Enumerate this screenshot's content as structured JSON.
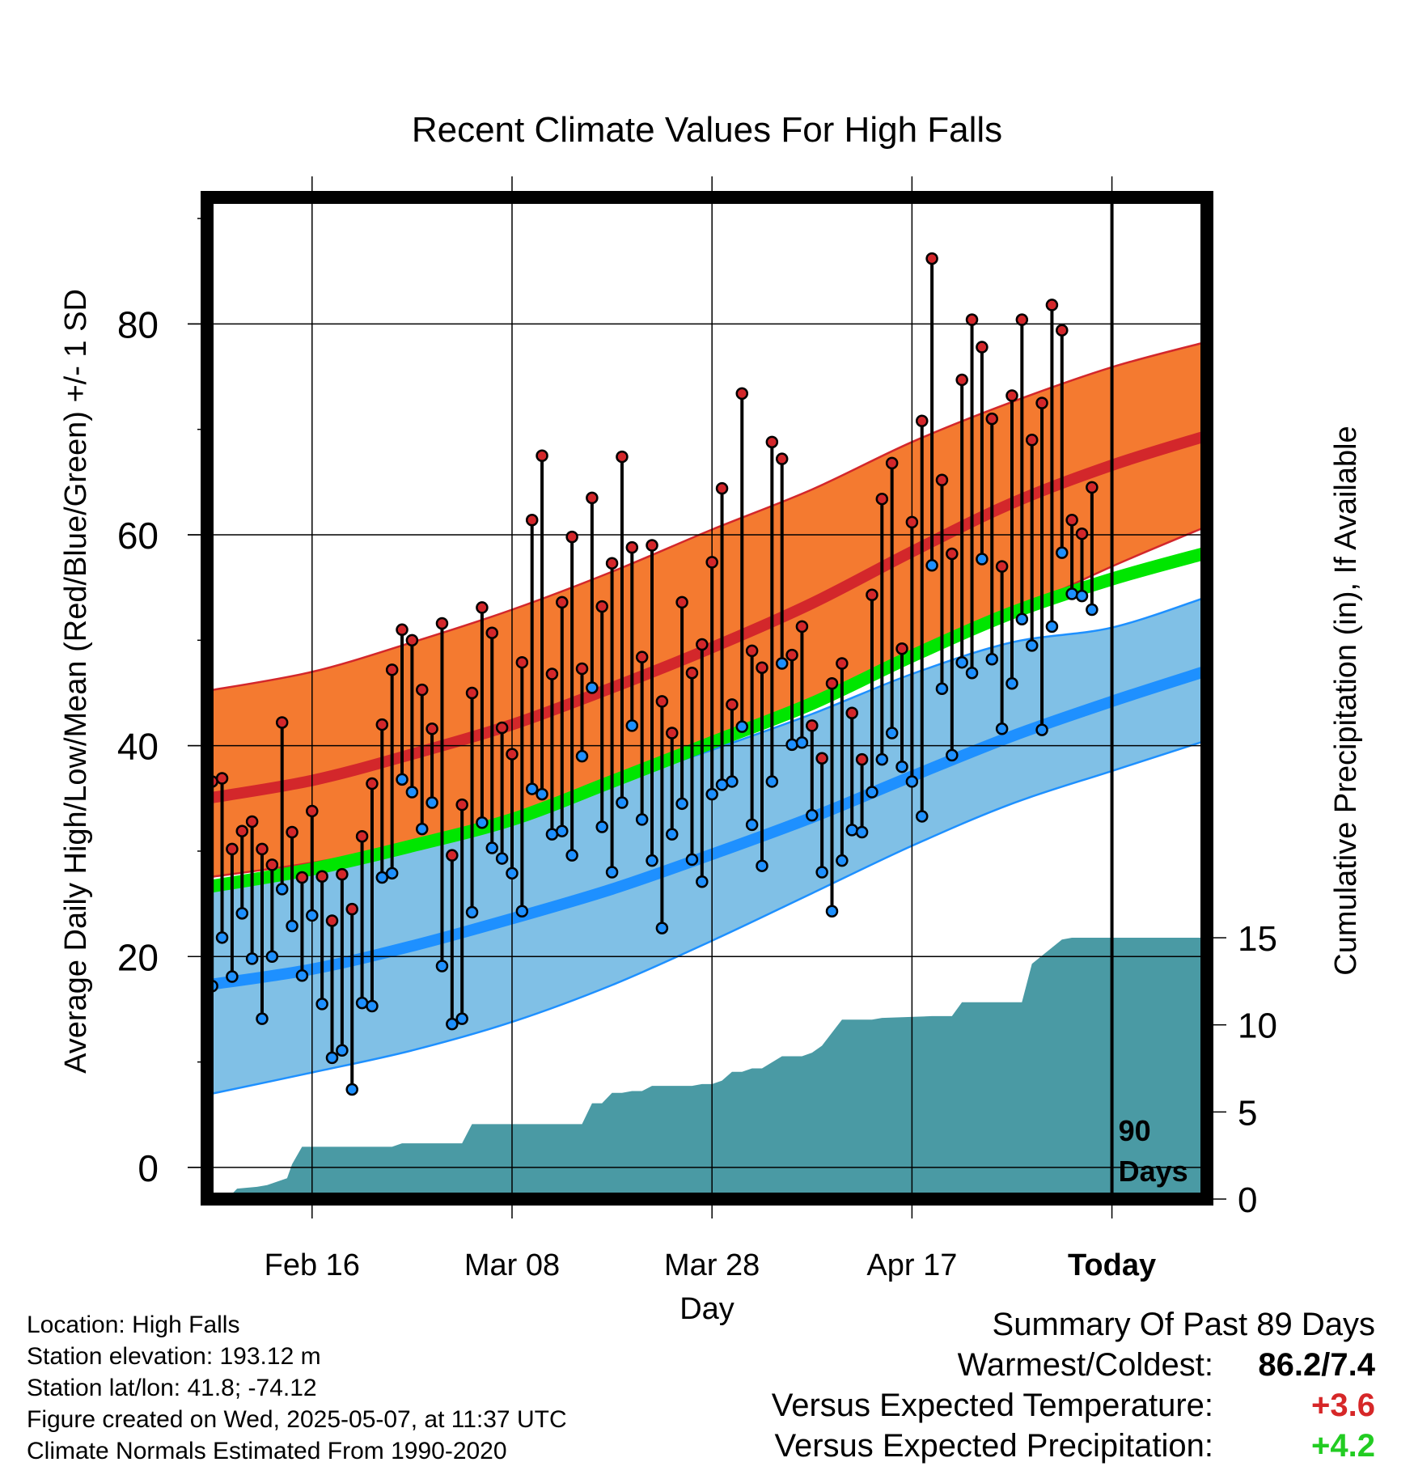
{
  "chart_data": {
    "type": "line",
    "title": "Recent Climate Values For High Falls",
    "xlabel": "Day",
    "ylabel": "Average Daily High/Low/Mean (Red/Blue/Green) +/- 1 SD",
    "y2label": "Cumulative Precipitation (in), If Available",
    "xlim": [
      -10.5,
      89.5
    ],
    "ylim": [
      -3,
      92
    ],
    "y2lim": [
      0,
      57.5
    ],
    "x_ticks": [
      {
        "x": 0,
        "label": "Feb 16"
      },
      {
        "x": 20,
        "label": "Mar 08"
      },
      {
        "x": 40,
        "label": "Mar 28"
      },
      {
        "x": 60,
        "label": "Apr 17"
      },
      {
        "x": 80,
        "label": "Today"
      }
    ],
    "y_ticks": [
      0,
      20,
      40,
      60,
      80
    ],
    "y2_ticks": [
      0,
      5,
      10,
      15
    ],
    "today_marker": {
      "x": 80,
      "label_line1": "90",
      "label_line2": "Days"
    },
    "grid": true,
    "series": [
      {
        "name": "Normal High",
        "x": [
          -10.5,
          0,
          10,
          20,
          30,
          40,
          50,
          60,
          70,
          80,
          89.5
        ],
        "values": [
          35.0,
          36.7,
          39.2,
          42.0,
          45.5,
          49.3,
          53.5,
          58.4,
          63.0,
          66.6,
          69.4
        ]
      },
      {
        "name": "Normal High +1 SD",
        "x": [
          -10.5,
          0,
          10,
          20,
          30,
          40,
          50,
          60,
          70,
          80,
          89.5
        ],
        "values": [
          45.2,
          47.0,
          49.8,
          52.9,
          56.5,
          60.5,
          64.3,
          68.8,
          72.6,
          75.9,
          78.3
        ]
      },
      {
        "name": "Normal High -1 SD",
        "x": [
          -10.5,
          0,
          10,
          20,
          30,
          40,
          50,
          60,
          70,
          80,
          89.5
        ],
        "values": [
          27.5,
          28.9,
          30.7,
          33.3,
          36.4,
          39.9,
          43.6,
          48.4,
          52.6,
          57.0,
          60.8
        ]
      },
      {
        "name": "Normal Mean",
        "x": [
          -10.5,
          0,
          10,
          20,
          30,
          40,
          50,
          60,
          70,
          80,
          89.5
        ],
        "values": [
          26.6,
          28.3,
          30.5,
          33.0,
          36.6,
          40.3,
          44.0,
          48.5,
          52.6,
          55.8,
          58.3
        ]
      },
      {
        "name": "Normal Low",
        "x": [
          -10.5,
          0,
          10,
          20,
          30,
          40,
          50,
          60,
          70,
          80,
          89.5
        ],
        "values": [
          17.3,
          18.8,
          21.0,
          23.6,
          26.4,
          29.7,
          33.2,
          37.1,
          40.9,
          44.2,
          47.1
        ]
      },
      {
        "name": "Normal Low +1 SD",
        "x": [
          -10.5,
          0,
          10,
          20,
          30,
          40,
          50,
          60,
          70,
          80,
          89.5
        ],
        "values": [
          26.6,
          28.3,
          30.5,
          32.9,
          36.4,
          39.6,
          43.0,
          46.8,
          49.8,
          51.2,
          54.1
        ]
      },
      {
        "name": "Normal Low -1 SD",
        "x": [
          -10.5,
          0,
          10,
          20,
          30,
          40,
          50,
          60,
          70,
          80,
          89.5
        ],
        "values": [
          6.9,
          9.0,
          11.1,
          13.8,
          17.3,
          21.5,
          26.0,
          30.5,
          34.5,
          37.6,
          40.5
        ]
      },
      {
        "name": "Daily High",
        "x": [
          -10,
          -9,
          -8,
          -7,
          -6,
          -5,
          -4,
          -3,
          -2,
          -1,
          0,
          1,
          2,
          3,
          4,
          5,
          6,
          7,
          8,
          9,
          10,
          11,
          12,
          13,
          14,
          15,
          16,
          17,
          18,
          19,
          20,
          21,
          22,
          23,
          24,
          25,
          26,
          27,
          28,
          29,
          30,
          31,
          32,
          33,
          34,
          35,
          36,
          37,
          38,
          39,
          40,
          41,
          42,
          43,
          44,
          45,
          46,
          47,
          48,
          49,
          50,
          51,
          52,
          53,
          54,
          55,
          56,
          57,
          58,
          59,
          60,
          61,
          62,
          63,
          64,
          65,
          66,
          67,
          68,
          69,
          70,
          71,
          72,
          73,
          74,
          75,
          76,
          77,
          78
        ],
        "values": [
          36.6,
          36.9,
          30.2,
          31.9,
          32.8,
          30.2,
          28.7,
          42.2,
          31.8,
          27.5,
          33.8,
          27.6,
          23.4,
          27.8,
          24.5,
          31.4,
          36.4,
          42.0,
          47.2,
          51.0,
          50.0,
          45.3,
          41.6,
          51.6,
          29.6,
          34.4,
          45.0,
          53.1,
          50.7,
          41.7,
          39.2,
          47.9,
          61.4,
          67.5,
          46.8,
          53.6,
          59.8,
          47.3,
          63.5,
          53.2,
          57.3,
          67.4,
          58.8,
          48.4,
          59.0,
          44.2,
          41.2,
          53.6,
          46.9,
          49.6,
          57.4,
          64.4,
          43.9,
          73.4,
          49.0,
          47.4,
          68.8,
          67.2,
          48.6,
          51.3,
          41.9,
          38.8,
          45.9,
          47.8,
          43.1,
          38.7,
          54.3,
          63.4,
          66.8,
          49.2,
          61.2,
          70.8,
          86.2,
          65.2,
          58.2,
          74.7,
          80.4,
          77.8,
          71.0,
          57.0,
          73.2,
          80.4,
          69.0,
          72.5,
          81.8,
          79.4,
          61.4,
          60.1,
          64.5
        ]
      },
      {
        "name": "Daily Low",
        "x": [
          -10,
          -9,
          -8,
          -7,
          -6,
          -5,
          -4,
          -3,
          -2,
          -1,
          0,
          1,
          2,
          3,
          4,
          5,
          6,
          7,
          8,
          9,
          10,
          11,
          12,
          13,
          14,
          15,
          16,
          17,
          18,
          19,
          20,
          21,
          22,
          23,
          24,
          25,
          26,
          27,
          28,
          29,
          30,
          31,
          32,
          33,
          34,
          35,
          36,
          37,
          38,
          39,
          40,
          41,
          42,
          43,
          44,
          45,
          46,
          47,
          48,
          49,
          50,
          51,
          52,
          53,
          54,
          55,
          56,
          57,
          58,
          59,
          60,
          61,
          62,
          63,
          64,
          65,
          66,
          67,
          68,
          69,
          70,
          71,
          72,
          73,
          74,
          75,
          76,
          77,
          78
        ],
        "values": [
          17.2,
          21.8,
          18.1,
          24.1,
          19.8,
          14.1,
          20.0,
          26.4,
          22.9,
          18.2,
          23.9,
          15.5,
          10.4,
          11.1,
          7.4,
          15.6,
          15.3,
          27.5,
          27.9,
          36.8,
          35.6,
          32.1,
          34.6,
          19.1,
          13.6,
          14.1,
          24.2,
          32.7,
          30.3,
          29.3,
          27.9,
          24.3,
          35.9,
          35.4,
          31.6,
          31.9,
          29.6,
          39.0,
          45.5,
          32.3,
          28.0,
          34.6,
          41.9,
          33.0,
          29.1,
          22.7,
          31.6,
          34.5,
          29.2,
          27.1,
          35.4,
          36.3,
          36.6,
          41.8,
          32.5,
          28.6,
          36.6,
          47.8,
          40.1,
          40.3,
          33.4,
          28.0,
          24.3,
          29.1,
          32.0,
          31.8,
          35.6,
          38.7,
          41.2,
          38.0,
          36.6,
          33.3,
          57.1,
          45.4,
          39.1,
          47.9,
          46.9,
          57.7,
          48.2,
          41.6,
          45.9,
          52.0,
          49.5,
          41.5,
          51.3,
          58.3,
          54.4,
          54.2,
          52.9
        ]
      }
    ],
    "precipitation": {
      "x": [
        -10.5,
        -8.5,
        -7.5,
        -5.5,
        -4.5,
        -3.5,
        -2.5,
        -2,
        -1,
        0,
        4,
        5,
        8,
        9,
        10,
        11,
        14,
        15,
        16,
        17,
        18,
        20,
        23,
        24,
        27,
        28,
        29,
        30,
        31,
        32,
        33,
        34,
        35,
        38,
        39,
        40,
        41,
        42,
        43,
        44,
        45,
        47,
        48,
        49,
        50,
        51,
        53,
        54,
        55,
        56,
        57,
        62,
        63,
        64,
        65,
        66,
        67,
        71,
        72,
        75,
        76,
        79,
        80,
        89.5
      ],
      "values": [
        0,
        0,
        0.6,
        0.7,
        0.8,
        1.0,
        1.2,
        2.0,
        3.0,
        3.0,
        3.0,
        3.0,
        3.0,
        3.2,
        3.2,
        3.2,
        3.2,
        3.2,
        4.3,
        4.3,
        4.3,
        4.3,
        4.3,
        4.3,
        4.3,
        5.5,
        5.5,
        6.1,
        6.1,
        6.2,
        6.2,
        6.5,
        6.5,
        6.5,
        6.6,
        6.6,
        6.8,
        7.3,
        7.3,
        7.5,
        7.5,
        8.2,
        8.2,
        8.2,
        8.4,
        8.8,
        10.3,
        10.3,
        10.3,
        10.3,
        10.4,
        10.5,
        10.5,
        10.5,
        11.3,
        11.3,
        11.3,
        11.3,
        13.5,
        14.9,
        15.0,
        15.0,
        15.0,
        15.0
      ]
    }
  },
  "info": {
    "location": "Location: High Falls",
    "elevation": "Station elevation: 193.12 m",
    "latlon": "Station lat/lon: 41.8; -74.12",
    "created": "Figure created on Wed, 2025-05-07, at 11:37 UTC",
    "normals": "Climate Normals Estimated From 1990-2020"
  },
  "summary": {
    "title": "Summary Of Past 89 Days",
    "warm_cold_label": "Warmest/Coldest:",
    "warm_cold_value": "86.2/7.4",
    "temp_label": "Versus Expected Temperature:",
    "temp_value": "+3.6",
    "precip_label": "Versus Expected Precipitation:",
    "precip_value": "+4.2"
  },
  "colors": {
    "high_band": "#f47a30",
    "high_line": "#d3272b",
    "low_band": "#80c0e6",
    "low_line": "#1e90ff",
    "mean_line": "#00e600",
    "precip_fill": "#4a9aa4",
    "warm_text": "#d62728",
    "green_text": "#22cc22"
  }
}
